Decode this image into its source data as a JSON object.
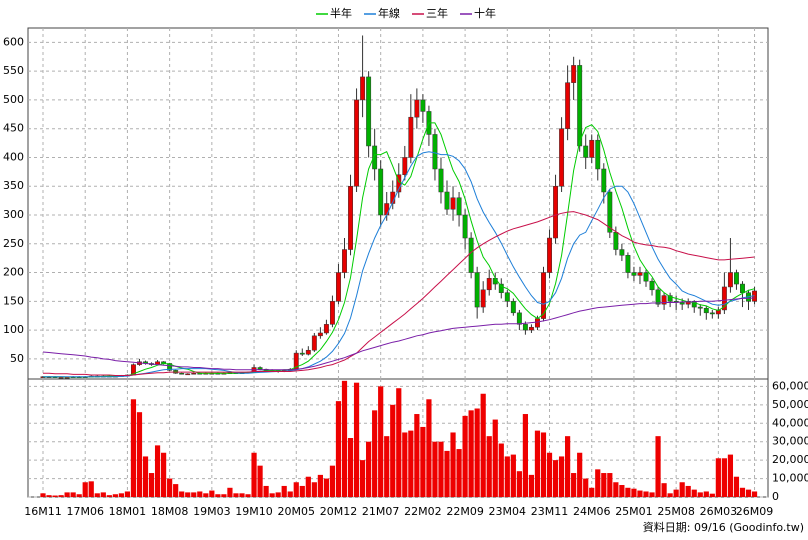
{
  "chart_data": [
    {
      "type": "candlestick",
      "open": [
        18,
        19,
        19,
        18,
        18,
        18,
        19,
        19,
        19,
        20,
        20,
        20,
        20,
        20,
        21,
        22,
        40,
        45,
        42,
        40,
        45,
        42,
        30,
        25,
        24,
        24,
        25,
        24,
        25,
        25,
        24,
        25,
        26,
        25,
        26,
        27,
        35,
        32,
        30,
        30,
        28,
        30,
        32,
        60,
        58,
        65,
        90,
        95,
        110,
        150,
        200,
        240,
        350,
        500,
        540,
        420,
        380,
        300,
        320,
        340,
        370,
        400,
        470,
        500,
        480,
        440,
        380,
        340,
        310,
        330,
        300,
        260,
        200,
        140,
        170,
        190,
        180,
        165,
        150,
        130,
        110,
        100,
        105,
        120,
        200,
        260,
        350,
        450,
        530,
        560,
        420,
        400,
        430,
        380,
        340,
        270,
        240,
        230,
        200,
        195,
        200,
        185,
        170,
        145,
        160,
        150,
        148,
        145,
        150,
        140,
        138,
        130,
        128,
        135,
        175,
        200,
        180,
        165,
        150
      ],
      "high": [
        20,
        20,
        20,
        19,
        19,
        20,
        20,
        20,
        21,
        21,
        21,
        21,
        21,
        22,
        23,
        42,
        50,
        47,
        44,
        48,
        46,
        43,
        31,
        26,
        25,
        26,
        26,
        26,
        26,
        26,
        26,
        27,
        27,
        27,
        28,
        40,
        37,
        33,
        32,
        31,
        31,
        34,
        65,
        68,
        72,
        95,
        105,
        118,
        160,
        215,
        260,
        370,
        520,
        612,
        550,
        450,
        395,
        340,
        360,
        390,
        420,
        510,
        520,
        510,
        490,
        450,
        400,
        360,
        350,
        340,
        310,
        270,
        210,
        185,
        205,
        200,
        190,
        170,
        155,
        135,
        115,
        110,
        125,
        210,
        275,
        370,
        470,
        560,
        575,
        570,
        440,
        440,
        440,
        390,
        345,
        280,
        250,
        235,
        210,
        210,
        205,
        190,
        175,
        165,
        165,
        160,
        155,
        155,
        152,
        145,
        142,
        135,
        140,
        200,
        260,
        205,
        185,
        170,
        175
      ],
      "low": [
        18,
        18,
        17,
        17,
        17,
        18,
        18,
        18,
        19,
        19,
        19,
        19,
        19,
        20,
        20,
        22,
        38,
        40,
        38,
        39,
        40,
        29,
        24,
        23,
        23,
        23,
        23,
        23,
        24,
        23,
        23,
        24,
        24,
        24,
        25,
        26,
        30,
        28,
        28,
        26,
        27,
        29,
        31,
        55,
        56,
        62,
        85,
        92,
        105,
        145,
        190,
        230,
        340,
        470,
        400,
        360,
        280,
        290,
        310,
        330,
        360,
        390,
        450,
        460,
        420,
        360,
        320,
        300,
        290,
        280,
        240,
        190,
        120,
        130,
        160,
        170,
        155,
        140,
        125,
        100,
        92,
        95,
        100,
        115,
        190,
        250,
        340,
        430,
        500,
        410,
        380,
        390,
        360,
        320,
        260,
        230,
        220,
        190,
        185,
        180,
        175,
        160,
        140,
        135,
        140,
        135,
        135,
        138,
        130,
        125,
        118,
        120,
        120,
        128,
        165,
        170,
        140,
        135,
        145
      ],
      "close": [
        19,
        19,
        18,
        18,
        18,
        19,
        19,
        19,
        20,
        20,
        20,
        20,
        20,
        21,
        22,
        40,
        45,
        42,
        40,
        45,
        42,
        30,
        25,
        24,
        24,
        25,
        24,
        25,
        25,
        24,
        25,
        26,
        25,
        26,
        27,
        35,
        32,
        30,
        30,
        28,
        30,
        32,
        60,
        58,
        65,
        90,
        95,
        110,
        150,
        200,
        240,
        350,
        500,
        540,
        420,
        380,
        300,
        320,
        340,
        370,
        400,
        470,
        500,
        480,
        440,
        380,
        340,
        310,
        330,
        300,
        260,
        200,
        140,
        170,
        190,
        180,
        165,
        150,
        130,
        110,
        100,
        105,
        120,
        200,
        260,
        350,
        450,
        530,
        560,
        420,
        400,
        430,
        380,
        340,
        270,
        240,
        230,
        200,
        195,
        200,
        185,
        170,
        145,
        160,
        150,
        148,
        145,
        150,
        140,
        138,
        130,
        128,
        135,
        175,
        200,
        180,
        165,
        150,
        168
      ],
      "up_color": "#e60000",
      "down_color": "#00b000",
      "series": [
        {
          "name": "半年",
          "color": "#00cc00",
          "values": [
            19,
            19,
            19,
            19,
            18.5,
            18.5,
            18.5,
            18.5,
            19,
            19,
            19.5,
            20,
            20,
            20,
            20.5,
            24,
            28,
            32,
            35,
            39,
            42,
            41,
            37,
            34,
            32,
            28,
            25,
            25,
            25,
            25,
            25,
            25,
            25,
            25,
            26,
            27,
            28,
            29,
            30,
            30,
            31,
            31,
            36,
            40,
            46,
            56,
            66,
            80,
            96,
            118,
            148,
            191,
            258,
            330,
            380,
            405,
            405,
            410,
            385,
            358,
            352,
            367,
            400,
            432,
            460,
            460,
            440,
            408,
            378,
            358,
            328,
            290,
            255,
            227,
            212,
            190,
            176,
            172,
            164,
            150,
            137,
            127,
            120,
            128,
            146,
            181,
            230,
            302,
            377,
            428,
            452,
            457,
            445,
            413,
            374,
            341,
            312,
            277,
            246,
            222,
            206,
            193,
            175,
            165,
            158,
            155,
            152,
            149,
            148,
            144,
            142,
            137,
            134,
            141,
            151,
            158,
            164,
            169,
            172
          ]
        },
        {
          "name": "年線",
          "color": "#1e7fd8",
          "values": [
            19,
            19,
            19,
            19,
            19,
            19,
            19,
            19,
            19,
            19,
            19,
            19,
            19,
            19.5,
            20,
            22,
            23.5,
            25,
            27,
            29,
            31,
            32,
            32,
            33,
            33,
            33,
            33,
            33,
            32,
            31,
            30,
            28,
            26,
            25,
            25,
            26,
            26.5,
            27,
            27.5,
            28,
            28.5,
            29,
            31,
            33,
            36,
            41,
            46,
            53,
            63,
            77,
            94,
            121,
            160,
            203,
            233,
            260,
            282,
            300,
            322,
            345,
            365,
            385,
            402,
            408,
            410,
            408,
            405,
            405,
            402,
            394,
            380,
            358,
            328,
            305,
            287,
            270,
            251,
            230,
            210,
            192,
            175,
            160,
            148,
            145,
            150,
            165,
            190,
            225,
            250,
            265,
            270,
            290,
            310,
            330,
            345,
            350,
            350,
            340,
            320,
            295,
            270,
            245,
            223,
            206,
            190,
            180,
            168,
            163,
            160,
            155,
            150,
            145,
            143,
            145,
            150,
            153,
            156,
            158,
            160
          ]
        },
        {
          "name": "三年",
          "color": "#c8104a",
          "values": [
            25,
            25,
            24,
            24,
            24,
            23,
            23,
            23,
            22,
            22,
            22,
            22,
            21,
            21,
            21,
            22,
            23,
            24,
            25,
            26,
            26,
            27,
            27,
            27,
            27,
            27,
            27,
            27,
            27,
            27,
            27,
            27,
            27,
            27,
            27,
            28,
            28,
            28,
            28,
            28,
            28,
            28,
            29,
            30,
            31,
            33,
            35,
            38,
            40,
            44,
            48,
            54,
            60,
            70,
            80,
            88,
            96,
            104,
            112,
            120,
            128,
            137,
            146,
            155,
            165,
            175,
            185,
            195,
            205,
            215,
            225,
            235,
            243,
            250,
            256,
            262,
            267,
            272,
            276,
            279,
            282,
            285,
            288,
            292,
            296,
            300,
            303,
            305,
            306,
            303,
            300,
            296,
            292,
            285,
            278,
            271,
            264,
            259,
            253,
            250,
            248,
            247,
            245,
            244,
            242,
            238,
            235,
            232,
            230,
            228,
            226,
            224,
            222,
            222,
            223,
            224,
            225,
            226,
            227
          ]
        },
        {
          "name": "十年",
          "color": "#7a1fa8",
          "values": [
            62,
            61,
            60,
            59,
            58,
            57,
            56,
            55,
            53,
            52,
            50,
            49,
            47,
            46,
            45,
            44,
            43,
            42,
            41,
            40,
            39,
            38,
            37,
            36,
            36,
            35,
            35,
            34,
            33,
            33,
            32,
            32,
            31,
            31,
            31,
            31,
            31,
            31,
            31,
            31,
            31,
            31,
            32,
            33,
            35,
            37,
            40,
            43,
            46,
            49,
            52,
            56,
            60,
            64,
            67,
            70,
            73,
            76,
            79,
            81,
            84,
            87,
            90,
            92,
            95,
            97,
            99,
            101,
            103,
            104,
            105,
            106,
            107,
            108,
            109,
            110,
            110,
            111,
            111,
            111,
            112,
            113,
            114,
            116,
            118,
            121,
            124,
            127,
            130,
            133,
            135,
            137,
            139,
            140,
            141,
            142,
            143,
            144,
            145,
            146,
            146,
            147,
            147,
            148,
            148,
            148,
            149,
            149,
            149,
            150,
            150,
            150,
            151,
            152,
            153,
            154,
            155,
            155,
            156
          ]
        }
      ],
      "ylim": [
        15,
        625
      ],
      "yticks": [
        50,
        100,
        150,
        200,
        250,
        300,
        350,
        400,
        450,
        500,
        550,
        600
      ],
      "grid": true
    },
    {
      "type": "bar",
      "categories": [
        "16M11",
        null,
        null,
        null,
        null,
        null,
        null,
        "17M06",
        null,
        null,
        null,
        null,
        null,
        null,
        "18M01",
        null,
        null,
        null,
        null,
        null,
        null,
        "18M08",
        null,
        null,
        null,
        null,
        null,
        null,
        "19M03",
        null,
        null,
        null,
        null,
        null,
        null,
        "19M10",
        null,
        null,
        null,
        null,
        null,
        null,
        "20M05",
        null,
        null,
        null,
        null,
        null,
        null,
        "20M12",
        null,
        null,
        null,
        null,
        null,
        null,
        "21M07",
        null,
        null,
        null,
        null,
        null,
        null,
        "22M02",
        null,
        null,
        null,
        null,
        null,
        null,
        "22M09",
        null,
        null,
        null,
        null,
        null,
        null,
        "23M04",
        null,
        null,
        null,
        null,
        null,
        null,
        "23M11",
        null,
        null,
        null,
        null,
        null,
        null,
        "24M06",
        null,
        null,
        null,
        null,
        null,
        null,
        "25M01",
        null,
        null,
        null,
        null,
        null,
        null,
        "25M08",
        null,
        null,
        null,
        null,
        null,
        null,
        "26M03",
        null,
        null,
        null,
        null,
        null,
        "26M09"
      ],
      "values": [
        2000,
        1000,
        800,
        1000,
        2500,
        2500,
        1500,
        8000,
        8500,
        2000,
        2500,
        1000,
        1500,
        2000,
        3000,
        53000,
        46000,
        22000,
        13000,
        28000,
        24000,
        10000,
        7000,
        3000,
        2500,
        2500,
        3000,
        2000,
        3500,
        1500,
        1500,
        5000,
        2000,
        2000,
        1500,
        24000,
        17000,
        6000,
        2000,
        2500,
        6000,
        3000,
        8000,
        6000,
        11000,
        8000,
        12000,
        10000,
        17000,
        52000,
        63000,
        32000,
        62000,
        20000,
        30000,
        47000,
        60000,
        33000,
        50000,
        59000,
        35000,
        36000,
        45000,
        38000,
        53000,
        30000,
        30000,
        25000,
        35000,
        26000,
        44000,
        47000,
        48000,
        56000,
        33000,
        42000,
        29000,
        22000,
        23000,
        14000,
        45000,
        12000,
        36000,
        35000,
        24000,
        20000,
        22000,
        33000,
        13000,
        24000,
        10000,
        5000,
        15000,
        13000,
        13000,
        8000,
        6500,
        5000,
        4500,
        3500,
        3000,
        2500,
        33000,
        7500,
        2000,
        4000,
        8000,
        6000,
        4000,
        2500,
        3000,
        1800,
        21000,
        21000,
        23000,
        11000,
        5000,
        4000,
        3000
      ],
      "color": "#ee0000",
      "ylim": [
        0,
        64000
      ],
      "yticks": [
        0,
        {
          "value": 10000,
          "label": "10,000"
        },
        {
          "value": 20000,
          "label": "20,000"
        },
        {
          "value": 30000,
          "label": "30,000"
        },
        {
          "value": 40000,
          "label": "40,000"
        },
        {
          "value": 50000,
          "label": "50,000"
        },
        {
          "value": 60000,
          "label": "60,000"
        }
      ],
      "grid": true
    }
  ],
  "footnote": "資料日期: 09/16 (Goodinfo.tw)"
}
